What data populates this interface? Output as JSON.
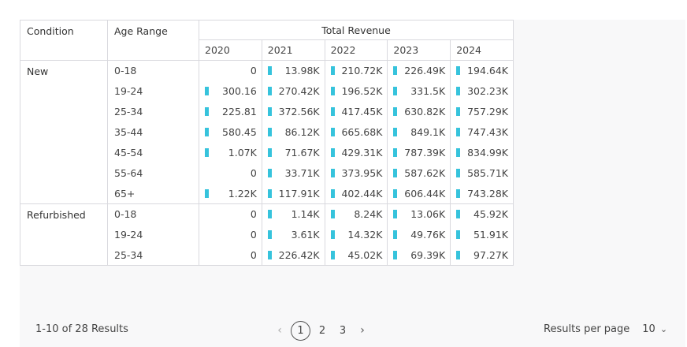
{
  "table": {
    "headers": {
      "condition": "Condition",
      "age_range": "Age Range",
      "total_revenue": "Total Revenue",
      "years": [
        "2020",
        "2021",
        "2022",
        "2023",
        "2024"
      ]
    },
    "bar_color": "#36c3dc",
    "groups": [
      {
        "condition": "New",
        "rows": [
          {
            "age": "0-18",
            "values": [
              {
                "v": "0",
                "bar": false
              },
              {
                "v": "13.98K",
                "bar": true
              },
              {
                "v": "210.72K",
                "bar": true
              },
              {
                "v": "226.49K",
                "bar": true
              },
              {
                "v": "194.64K",
                "bar": true
              }
            ]
          },
          {
            "age": "19-24",
            "values": [
              {
                "v": "300.16",
                "bar": true
              },
              {
                "v": "270.42K",
                "bar": true
              },
              {
                "v": "196.52K",
                "bar": true
              },
              {
                "v": "331.5K",
                "bar": true
              },
              {
                "v": "302.23K",
                "bar": true
              }
            ]
          },
          {
            "age": "25-34",
            "values": [
              {
                "v": "225.81",
                "bar": true
              },
              {
                "v": "372.56K",
                "bar": true
              },
              {
                "v": "417.45K",
                "bar": true
              },
              {
                "v": "630.82K",
                "bar": true
              },
              {
                "v": "757.29K",
                "bar": true
              }
            ]
          },
          {
            "age": "35-44",
            "values": [
              {
                "v": "580.45",
                "bar": true
              },
              {
                "v": "86.12K",
                "bar": true
              },
              {
                "v": "665.68K",
                "bar": true
              },
              {
                "v": "849.1K",
                "bar": true
              },
              {
                "v": "747.43K",
                "bar": true
              }
            ]
          },
          {
            "age": "45-54",
            "values": [
              {
                "v": "1.07K",
                "bar": true
              },
              {
                "v": "71.67K",
                "bar": true
              },
              {
                "v": "429.31K",
                "bar": true
              },
              {
                "v": "787.39K",
                "bar": true
              },
              {
                "v": "834.99K",
                "bar": true
              }
            ]
          },
          {
            "age": "55-64",
            "values": [
              {
                "v": "0",
                "bar": false
              },
              {
                "v": "33.71K",
                "bar": true
              },
              {
                "v": "373.95K",
                "bar": true
              },
              {
                "v": "587.62K",
                "bar": true
              },
              {
                "v": "585.71K",
                "bar": true
              }
            ]
          },
          {
            "age": "65+",
            "values": [
              {
                "v": "1.22K",
                "bar": true
              },
              {
                "v": "117.91K",
                "bar": true
              },
              {
                "v": "402.44K",
                "bar": true
              },
              {
                "v": "606.44K",
                "bar": true
              },
              {
                "v": "743.28K",
                "bar": true
              }
            ]
          }
        ]
      },
      {
        "condition": "Refurbished",
        "rows": [
          {
            "age": "0-18",
            "values": [
              {
                "v": "0",
                "bar": false
              },
              {
                "v": "1.14K",
                "bar": true
              },
              {
                "v": "8.24K",
                "bar": true
              },
              {
                "v": "13.06K",
                "bar": true
              },
              {
                "v": "45.92K",
                "bar": true
              }
            ]
          },
          {
            "age": "19-24",
            "values": [
              {
                "v": "0",
                "bar": false
              },
              {
                "v": "3.61K",
                "bar": true
              },
              {
                "v": "14.32K",
                "bar": true
              },
              {
                "v": "49.76K",
                "bar": true
              },
              {
                "v": "51.91K",
                "bar": true
              }
            ]
          },
          {
            "age": "25-34",
            "values": [
              {
                "v": "0",
                "bar": false
              },
              {
                "v": "226.42K",
                "bar": true
              },
              {
                "v": "45.02K",
                "bar": true
              },
              {
                "v": "69.39K",
                "bar": true
              },
              {
                "v": "97.27K",
                "bar": true
              }
            ]
          }
        ]
      }
    ]
  },
  "footer": {
    "results_text": "1-10 of 28 Results",
    "pagination": {
      "prev_icon": "chevron-left-icon",
      "prev_glyph": "‹",
      "pages": [
        "1",
        "2",
        "3"
      ],
      "current_page": "1",
      "next_icon": "chevron-right-icon",
      "next_glyph": "›"
    },
    "per_page_label": "Results per page",
    "per_page_value": "10",
    "per_page_icon": "chevron-down-icon",
    "per_page_glyph": "⌄"
  }
}
